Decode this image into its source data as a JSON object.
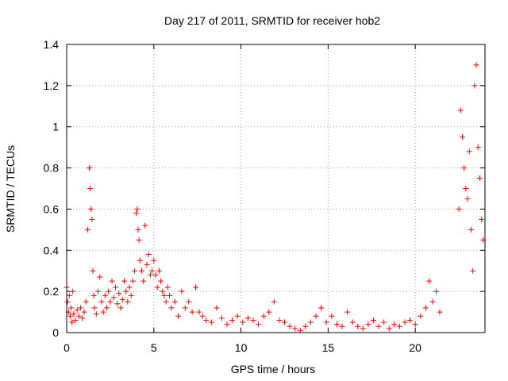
{
  "chart_data": {
    "type": "scatter",
    "title": "Day 217 of 2011, SRMTID for receiver hob2",
    "xlabel": "GPS time / hours",
    "ylabel": "SRMTID / TECUs",
    "xlim": [
      0,
      24
    ],
    "ylim": [
      0,
      1.4
    ],
    "xticks": [
      0,
      5,
      10,
      15,
      20
    ],
    "xtick_labels": [
      "0",
      "5",
      "10",
      "15",
      "20"
    ],
    "yticks": [
      0,
      0.2,
      0.4,
      0.6,
      0.8,
      1.0,
      1.2,
      1.4
    ],
    "ytick_labels": [
      "0",
      "0.2",
      "0.4",
      "0.6",
      "0.8",
      "1",
      "1.2",
      "1.4"
    ],
    "grid": true,
    "marker": "plus",
    "marker_color": "#ff0000",
    "series": [
      {
        "name": "hob2",
        "x": [
          0.0,
          0.05,
          0.1,
          0.15,
          0.2,
          0.25,
          0.3,
          0.35,
          0.4,
          0.5,
          0.6,
          0.7,
          0.8,
          0.9,
          1.0,
          1.1,
          1.2,
          1.3,
          1.35,
          1.4,
          1.45,
          1.5,
          1.55,
          1.6,
          1.7,
          1.8,
          1.9,
          2.0,
          2.1,
          2.2,
          2.3,
          2.4,
          2.5,
          2.6,
          2.7,
          2.8,
          2.9,
          3.0,
          3.1,
          3.2,
          3.3,
          3.4,
          3.5,
          3.6,
          3.7,
          3.8,
          3.9,
          4.0,
          4.05,
          4.1,
          4.15,
          4.2,
          4.3,
          4.4,
          4.5,
          4.6,
          4.7,
          4.8,
          4.9,
          5.0,
          5.1,
          5.2,
          5.3,
          5.4,
          5.5,
          5.6,
          5.7,
          5.8,
          5.9,
          6.0,
          6.2,
          6.4,
          6.6,
          6.8,
          7.0,
          7.2,
          7.4,
          7.6,
          7.8,
          8.0,
          8.3,
          8.6,
          8.9,
          9.2,
          9.5,
          9.8,
          10.1,
          10.4,
          10.7,
          11.0,
          11.3,
          11.6,
          11.9,
          12.2,
          12.5,
          12.8,
          13.1,
          13.4,
          13.7,
          14.0,
          14.3,
          14.6,
          14.9,
          15.2,
          15.5,
          15.8,
          16.1,
          16.4,
          16.7,
          17.0,
          17.3,
          17.6,
          17.9,
          18.2,
          18.5,
          18.8,
          19.1,
          19.4,
          19.7,
          20.0,
          20.3,
          20.6,
          20.8,
          21.0,
          21.2,
          21.4,
          22.5,
          22.6,
          22.7,
          22.8,
          22.9,
          23.0,
          23.1,
          23.2,
          23.3,
          23.4,
          23.5,
          23.6,
          23.7,
          23.8,
          23.9
        ],
        "y": [
          0.22,
          0.15,
          0.1,
          0.18,
          0.08,
          0.12,
          0.05,
          0.2,
          0.09,
          0.06,
          0.11,
          0.08,
          0.12,
          0.07,
          0.1,
          0.15,
          0.5,
          0.8,
          0.7,
          0.6,
          0.55,
          0.3,
          0.18,
          0.12,
          0.09,
          0.2,
          0.27,
          0.15,
          0.1,
          0.18,
          0.12,
          0.2,
          0.15,
          0.25,
          0.17,
          0.22,
          0.14,
          0.19,
          0.12,
          0.16,
          0.25,
          0.2,
          0.15,
          0.22,
          0.18,
          0.25,
          0.3,
          0.58,
          0.6,
          0.5,
          0.45,
          0.35,
          0.3,
          0.25,
          0.52,
          0.33,
          0.38,
          0.28,
          0.3,
          0.35,
          0.28,
          0.22,
          0.3,
          0.25,
          0.2,
          0.18,
          0.15,
          0.22,
          0.18,
          0.12,
          0.15,
          0.08,
          0.2,
          0.12,
          0.15,
          0.1,
          0.22,
          0.1,
          0.08,
          0.06,
          0.05,
          0.12,
          0.07,
          0.04,
          0.06,
          0.08,
          0.05,
          0.07,
          0.06,
          0.04,
          0.08,
          0.1,
          0.15,
          0.06,
          0.05,
          0.03,
          0.02,
          0.01,
          0.03,
          0.05,
          0.08,
          0.12,
          0.05,
          0.08,
          0.04,
          0.03,
          0.1,
          0.05,
          0.03,
          0.02,
          0.04,
          0.06,
          0.03,
          0.05,
          0.02,
          0.04,
          0.03,
          0.05,
          0.06,
          0.04,
          0.08,
          0.12,
          0.25,
          0.15,
          0.2,
          0.1,
          0.6,
          1.08,
          0.95,
          0.8,
          0.7,
          0.65,
          0.88,
          0.5,
          0.3,
          1.2,
          1.3,
          0.9,
          0.75,
          0.55,
          0.45
        ]
      }
    ]
  }
}
